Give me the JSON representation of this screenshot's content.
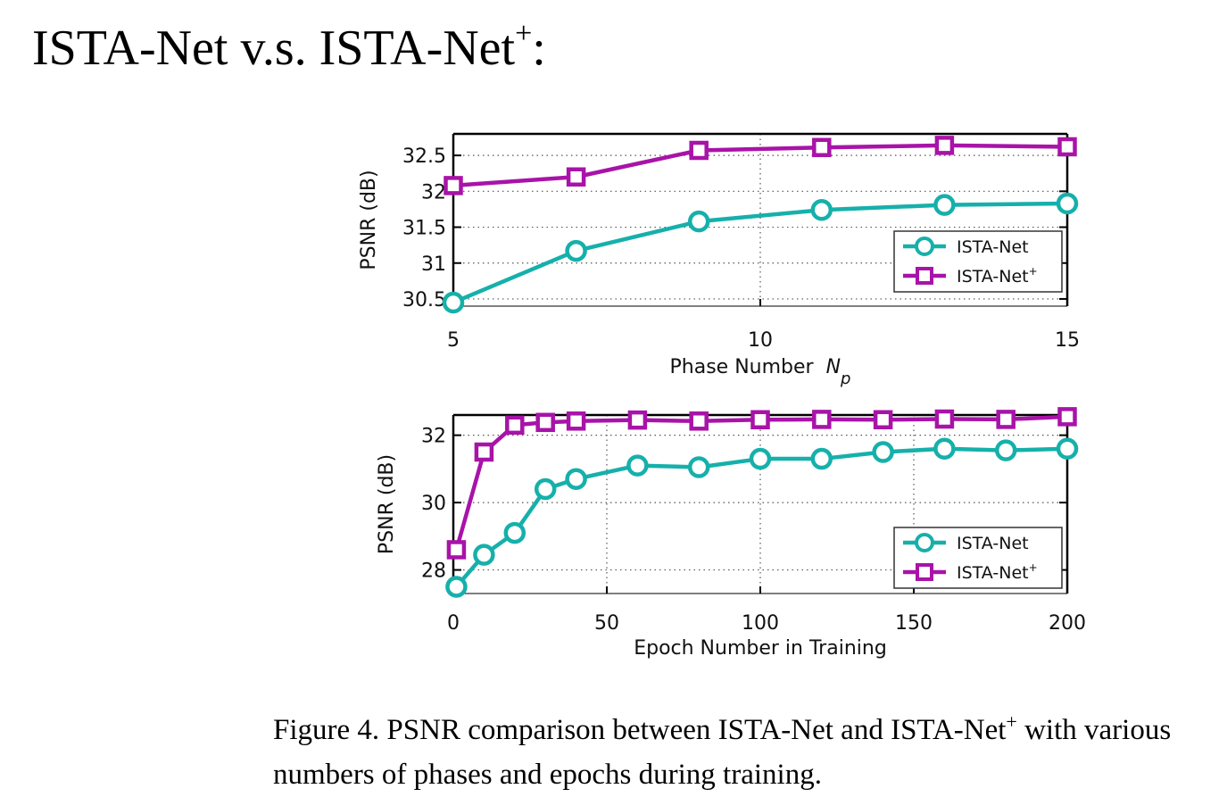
{
  "slide": {
    "title_main": "ISTA-Net v.s. ISTA-Net",
    "title_sup": "+",
    "title_colon": ":"
  },
  "caption": {
    "prefix": "Figure 4. PSNR comparison between ISTA-Net and ISTA-Net",
    "sup": "+",
    "suffix": " with various numbers of phases and epochs during training."
  },
  "colors": {
    "ista_net": "#16B0AB",
    "ista_net_plus": "#A813A8"
  },
  "chart_data": [
    {
      "type": "line",
      "xlabel": "Phase Number",
      "xlabel_symbol": "N",
      "xlabel_subscript": "p",
      "ylabel": "PSNR (dB)",
      "xlim": [
        5,
        15
      ],
      "ylim": [
        30.4,
        32.8
      ],
      "xticks": [
        5,
        10,
        15
      ],
      "yticks": [
        30.5,
        31,
        31.5,
        32,
        32.5
      ],
      "grid": true,
      "legend_position": "lower-right",
      "series": [
        {
          "name": "ISTA-Net",
          "marker": "circle",
          "color": "#16B0AB",
          "x": [
            5,
            7,
            9,
            11,
            13,
            15
          ],
          "y": [
            30.45,
            31.17,
            31.58,
            31.74,
            31.81,
            31.83
          ]
        },
        {
          "name": "ISTA-Net+",
          "marker": "square",
          "color": "#A813A8",
          "x": [
            5,
            7,
            9,
            11,
            13,
            15
          ],
          "y": [
            32.08,
            32.2,
            32.57,
            32.61,
            32.64,
            32.62
          ]
        }
      ]
    },
    {
      "type": "line",
      "xlabel": "Epoch Number in Training",
      "ylabel": "PSNR (dB)",
      "xlim": [
        0,
        200
      ],
      "ylim": [
        27.3,
        32.6
      ],
      "xticks": [
        0,
        50,
        100,
        150,
        200
      ],
      "yticks": [
        28,
        30,
        32
      ],
      "grid": true,
      "legend_position": "lower-right",
      "series": [
        {
          "name": "ISTA-Net",
          "marker": "circle",
          "color": "#16B0AB",
          "x": [
            1,
            10,
            20,
            30,
            40,
            60,
            80,
            100,
            120,
            140,
            160,
            180,
            200
          ],
          "y": [
            27.5,
            28.45,
            29.1,
            30.4,
            30.7,
            31.1,
            31.05,
            31.3,
            31.3,
            31.5,
            31.6,
            31.55,
            31.6
          ]
        },
        {
          "name": "ISTA-Net+",
          "marker": "square",
          "color": "#A813A8",
          "x": [
            1,
            10,
            20,
            30,
            40,
            60,
            80,
            100,
            120,
            140,
            160,
            180,
            200
          ],
          "y": [
            28.6,
            31.5,
            32.3,
            32.38,
            32.42,
            32.45,
            32.42,
            32.46,
            32.47,
            32.46,
            32.48,
            32.47,
            32.55
          ]
        }
      ]
    }
  ]
}
